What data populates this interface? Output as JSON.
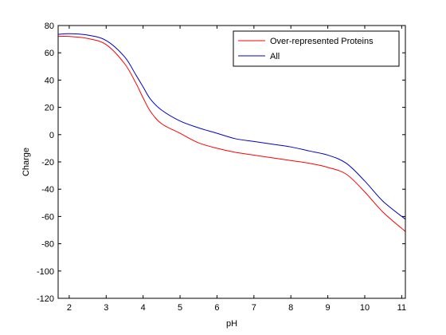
{
  "chart_data": {
    "type": "line",
    "title": "",
    "xlabel": "pH",
    "ylabel": "Charge",
    "xlim": [
      1.7,
      11.1
    ],
    "ylim": [
      -120,
      80
    ],
    "xticks": [
      2,
      3,
      4,
      5,
      6,
      7,
      8,
      9,
      10,
      11
    ],
    "yticks": [
      -120,
      -100,
      -80,
      -60,
      -40,
      -20,
      0,
      20,
      40,
      60,
      80
    ],
    "grid": false,
    "legend_position": "top-right",
    "series": [
      {
        "name": "Over-represented Proteins",
        "color": "#ff0000",
        "x": [
          1.7,
          2.0,
          2.5,
          3.0,
          3.5,
          3.8,
          4.0,
          4.2,
          4.5,
          5.0,
          5.5,
          6.0,
          6.5,
          7.0,
          7.5,
          8.0,
          8.5,
          9.0,
          9.5,
          10.0,
          10.5,
          11.1
        ],
        "y": [
          72,
          72,
          70.5,
          66,
          52,
          38,
          27,
          17,
          8,
          1,
          -6,
          -10,
          -13,
          -15,
          -17,
          -19,
          -21,
          -24,
          -29,
          -42,
          -57,
          -71
        ]
      },
      {
        "name": "All",
        "color": "#0000cc",
        "x": [
          1.7,
          2.0,
          2.5,
          3.0,
          3.5,
          3.8,
          4.0,
          4.2,
          4.5,
          5.0,
          5.5,
          6.0,
          6.5,
          7.0,
          7.5,
          8.0,
          8.5,
          9.0,
          9.5,
          10.0,
          10.5,
          11.1
        ],
        "y": [
          73.5,
          74,
          73,
          69,
          57,
          44,
          35,
          26,
          18,
          10,
          5,
          1,
          -3,
          -5,
          -7,
          -9,
          -12,
          -15,
          -21,
          -34,
          -49,
          -62
        ]
      }
    ]
  }
}
